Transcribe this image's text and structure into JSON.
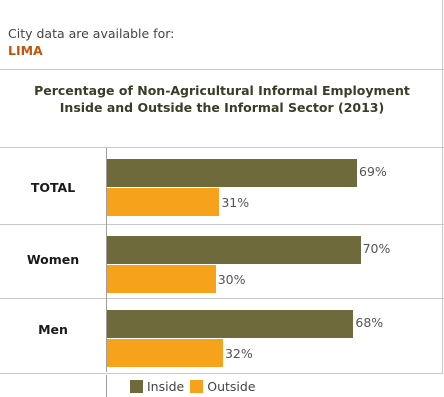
{
  "header": {
    "city_label": "City data are available for:",
    "city_name": "LIMA"
  },
  "colors": {
    "inside": "#6e6a3b",
    "outside": "#f7a21b",
    "city_name": "#c0560e"
  },
  "chart_data": {
    "type": "bar",
    "orientation": "horizontal",
    "title": [
      "Percentage of Non-Agricultural Informal Employment",
      "Inside and Outside the Informal Sector (2013)"
    ],
    "categories": [
      "TOTAL",
      "Women",
      "Men"
    ],
    "series": [
      {
        "name": "Inside",
        "values": [
          69,
          70,
          68
        ],
        "labels": [
          "69%",
          "70%",
          "68%"
        ]
      },
      {
        "name": "Outside",
        "values": [
          31,
          30,
          32
        ],
        "labels": [
          "31%",
          "30%",
          "32%"
        ]
      }
    ],
    "xlim": [
      0,
      100
    ],
    "legend": "bottom",
    "grid": false
  }
}
